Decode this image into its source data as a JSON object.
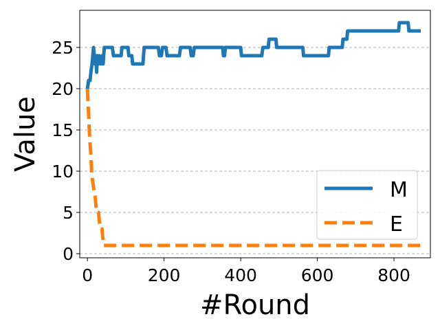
{
  "chart_data": {
    "type": "line",
    "title": "",
    "xlabel": "#Round",
    "ylabel": "Value",
    "xlim": [
      -20,
      895
    ],
    "ylim": [
      -0.5,
      29.5
    ],
    "xticks": [
      0,
      200,
      400,
      600,
      800
    ],
    "xtick_labels": [
      "0",
      "200",
      "400",
      "600",
      "800"
    ],
    "yticks": [
      0,
      5,
      10,
      15,
      20,
      25
    ],
    "ytick_labels": [
      "0",
      "5",
      "10",
      "15",
      "20",
      "25"
    ],
    "grid": "y-dashed",
    "legend_position": "lower right",
    "series": [
      {
        "name": "M",
        "color": "#1f77b4",
        "dash": "solid",
        "points": [
          [
            0,
            20
          ],
          [
            3,
            21
          ],
          [
            7,
            21
          ],
          [
            9,
            22
          ],
          [
            12,
            23
          ],
          [
            14,
            24
          ],
          [
            16,
            25
          ],
          [
            18,
            24
          ],
          [
            20,
            23
          ],
          [
            22,
            24
          ],
          [
            24,
            22
          ],
          [
            26,
            24
          ],
          [
            29,
            23
          ],
          [
            31,
            24
          ],
          [
            35,
            23
          ],
          [
            39,
            24
          ],
          [
            41,
            23
          ],
          [
            44,
            25
          ],
          [
            65,
            25
          ],
          [
            68,
            24
          ],
          [
            88,
            24
          ],
          [
            90,
            25
          ],
          [
            106,
            25
          ],
          [
            108,
            24
          ],
          [
            116,
            24
          ],
          [
            118,
            23
          ],
          [
            145,
            23
          ],
          [
            148,
            25
          ],
          [
            185,
            25
          ],
          [
            188,
            24
          ],
          [
            193,
            24
          ],
          [
            196,
            25
          ],
          [
            205,
            25
          ],
          [
            208,
            24
          ],
          [
            240,
            24
          ],
          [
            243,
            25
          ],
          [
            268,
            25
          ],
          [
            271,
            24
          ],
          [
            276,
            24
          ],
          [
            279,
            25
          ],
          [
            353,
            25
          ],
          [
            355,
            24
          ],
          [
            358,
            24
          ],
          [
            360,
            25
          ],
          [
            400,
            25
          ],
          [
            402,
            24
          ],
          [
            455,
            24
          ],
          [
            458,
            25
          ],
          [
            472,
            25
          ],
          [
            474,
            26
          ],
          [
            492,
            26
          ],
          [
            494,
            25
          ],
          [
            562,
            25
          ],
          [
            564,
            24
          ],
          [
            629,
            24
          ],
          [
            631,
            25
          ],
          [
            665,
            25
          ],
          [
            667,
            26
          ],
          [
            677,
            26
          ],
          [
            679,
            27
          ],
          [
            812,
            27
          ],
          [
            814,
            28
          ],
          [
            837,
            28
          ],
          [
            839,
            27
          ],
          [
            870,
            27
          ]
        ]
      },
      {
        "name": "E",
        "color": "#ff7f0e",
        "dash": "dashed",
        "points": [
          [
            0,
            20
          ],
          [
            3,
            17
          ],
          [
            6,
            14
          ],
          [
            9,
            12
          ],
          [
            11,
            10
          ],
          [
            13,
            9
          ],
          [
            16,
            8
          ],
          [
            20,
            7
          ],
          [
            24,
            5
          ],
          [
            29,
            5
          ],
          [
            31,
            4
          ],
          [
            34,
            3
          ],
          [
            38,
            3
          ],
          [
            40,
            2
          ],
          [
            43,
            1
          ],
          [
            48,
            1
          ],
          [
            870,
            1
          ]
        ]
      }
    ]
  }
}
